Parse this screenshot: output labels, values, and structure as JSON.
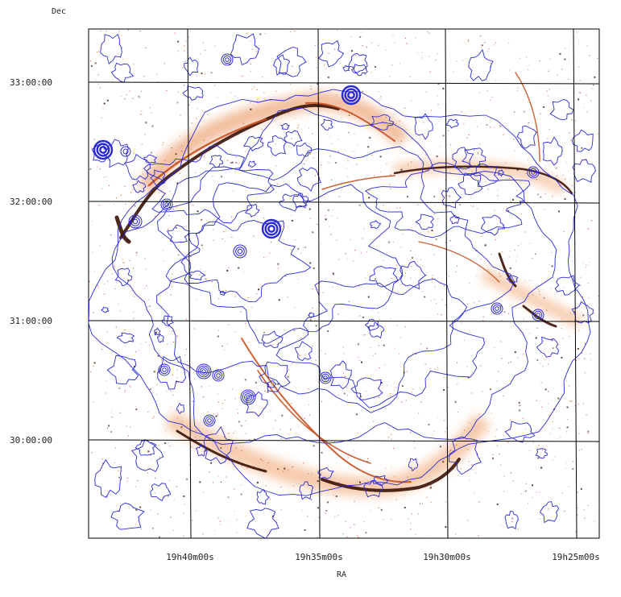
{
  "axes": {
    "y_title": "Dec",
    "x_title": "RA",
    "dec_ticks": [
      "33:00:00",
      "32:00:00",
      "31:00:00",
      "30:00:00"
    ],
    "ra_ticks": [
      "19h40m00s",
      "19h35m00s",
      "19h30m00s",
      "19h25m00s"
    ]
  },
  "colors": {
    "emission": "#c8501e",
    "emission_dark": "#3a1206",
    "contour": "#2b2bd6",
    "grid": "#000000"
  },
  "layers": {
    "image": "optical emission image (orange/brown)",
    "overlay": "X-ray intensity contours (blue)"
  }
}
